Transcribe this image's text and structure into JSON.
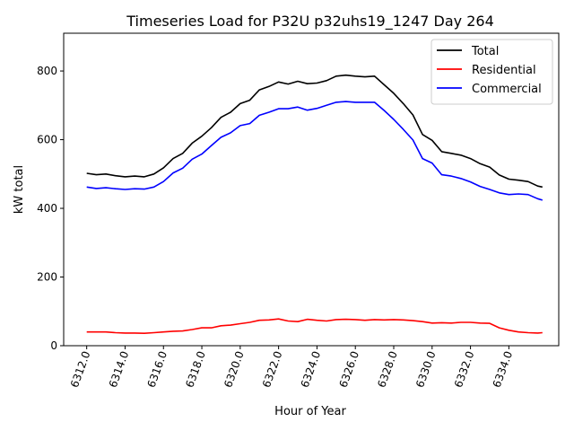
{
  "chart_data": {
    "type": "line",
    "title": "Timeseries Load for P32U p32uhs19_1247  Day 264",
    "xlabel": "Hour of Year",
    "ylabel": "kW total",
    "xlim": [
      6310.8,
      6336.6
    ],
    "ylim": [
      0,
      910
    ],
    "xticks": [
      6312,
      6314,
      6316,
      6318,
      6320,
      6322,
      6324,
      6326,
      6328,
      6330,
      6332,
      6334
    ],
    "xtick_labels": [
      "6312.0",
      "6314.0",
      "6316.0",
      "6318.0",
      "6320.0",
      "6322.0",
      "6324.0",
      "6326.0",
      "6328.0",
      "6330.0",
      "6332.0",
      "6334.0"
    ],
    "yticks": [
      0,
      200,
      400,
      600,
      800
    ],
    "ytick_labels": [
      "0",
      "200",
      "400",
      "600",
      "800"
    ],
    "grid": false,
    "legend_position": "top-right",
    "x": [
      6312,
      6312.5,
      6313,
      6313.5,
      6314,
      6314.5,
      6315,
      6315.5,
      6316,
      6316.5,
      6317,
      6317.5,
      6318,
      6318.5,
      6319,
      6319.5,
      6320,
      6320.5,
      6321,
      6321.5,
      6322,
      6322.5,
      6323,
      6323.5,
      6324,
      6324.5,
      6325,
      6325.5,
      6326,
      6326.5,
      6327,
      6327.5,
      6328,
      6328.5,
      6329,
      6329.5,
      6330,
      6330.5,
      6331,
      6331.5,
      6332,
      6332.5,
      6333,
      6333.5,
      6334,
      6334.5,
      6335,
      6335.5,
      6335.75
    ],
    "series": [
      {
        "name": "Total",
        "color": "#000000",
        "values": [
          502,
          498,
          500,
          495,
          492,
          494,
          492,
          500,
          518,
          545,
          560,
          590,
          610,
          635,
          665,
          680,
          705,
          715,
          745,
          755,
          768,
          762,
          770,
          763,
          765,
          772,
          785,
          788,
          785,
          783,
          785,
          760,
          735,
          705,
          672,
          615,
          598,
          565,
          560,
          555,
          545,
          530,
          520,
          497,
          485,
          482,
          478,
          465,
          462
        ]
      },
      {
        "name": "Residential",
        "color": "#ff0000",
        "values": [
          40,
          40,
          40,
          38,
          37,
          37,
          36,
          38,
          40,
          42,
          43,
          47,
          52,
          52,
          58,
          60,
          64,
          68,
          74,
          75,
          78,
          72,
          70,
          77,
          74,
          72,
          76,
          77,
          76,
          74,
          76,
          75,
          76,
          75,
          73,
          70,
          66,
          67,
          66,
          68,
          68,
          66,
          65,
          52,
          45,
          40,
          38,
          37,
          38
        ]
      },
      {
        "name": "Commercial",
        "color": "#0000ff",
        "values": [
          462,
          458,
          460,
          457,
          455,
          457,
          456,
          462,
          478,
          503,
          517,
          543,
          558,
          583,
          607,
          620,
          641,
          647,
          671,
          680,
          690,
          690,
          695,
          686,
          691,
          700,
          709,
          711,
          709,
          709,
          709,
          685,
          659,
          630,
          599,
          545,
          532,
          498,
          494,
          487,
          477,
          464,
          455,
          445,
          440,
          442,
          440,
          428,
          424
        ]
      }
    ]
  }
}
